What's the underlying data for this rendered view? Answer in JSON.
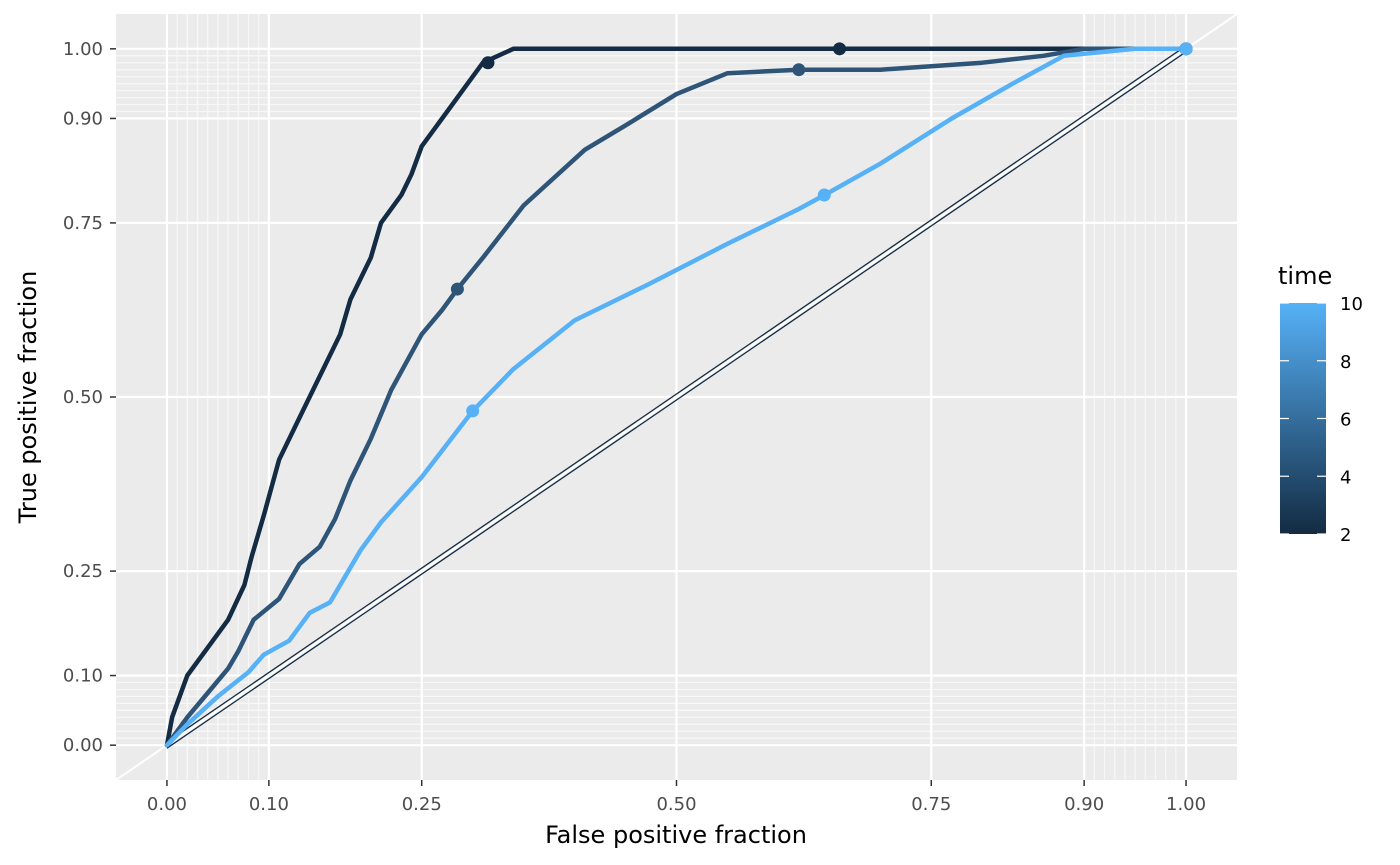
{
  "chart_data": {
    "type": "line",
    "xlabel": "False positive fraction",
    "ylabel": "True positive fraction",
    "xlim": [
      -0.05,
      1.05
    ],
    "ylim": [
      -0.05,
      1.05
    ],
    "x_ticks": [
      0.0,
      0.1,
      0.25,
      0.5,
      0.75,
      0.9,
      1.0
    ],
    "x_tick_labels": [
      "0.00",
      "0.10",
      "0.25",
      "0.50",
      "0.75",
      "0.90",
      "1.00"
    ],
    "y_ticks": [
      0.0,
      0.1,
      0.25,
      0.5,
      0.75,
      0.9,
      1.0
    ],
    "y_tick_labels": [
      "0.00",
      "0.10",
      "0.25",
      "0.50",
      "0.75",
      "0.90",
      "1.00"
    ],
    "background": "#EBEBEB",
    "grid": true,
    "legend": {
      "title": "time",
      "position": "right",
      "type": "colorbar",
      "min": 2,
      "max": 10,
      "breaks": [
        10,
        8,
        6,
        4,
        2
      ],
      "break_labels": [
        "10",
        "8",
        "6",
        "4",
        "2"
      ],
      "low_color": "#132B43",
      "high_color": "#56B1F7"
    },
    "series": [
      {
        "time": 2,
        "color": "#132B43",
        "points": [
          [
            0,
            0
          ],
          [
            0.005,
            0.04
          ],
          [
            0.02,
            0.1
          ],
          [
            0.04,
            0.14
          ],
          [
            0.06,
            0.18
          ],
          [
            0.076,
            0.23
          ],
          [
            0.083,
            0.27
          ],
          [
            0.095,
            0.33
          ],
          [
            0.11,
            0.41
          ],
          [
            0.13,
            0.47
          ],
          [
            0.15,
            0.53
          ],
          [
            0.17,
            0.59
          ],
          [
            0.18,
            0.64
          ],
          [
            0.2,
            0.7
          ],
          [
            0.21,
            0.75
          ],
          [
            0.23,
            0.79
          ],
          [
            0.24,
            0.82
          ],
          [
            0.25,
            0.86
          ],
          [
            0.27,
            0.9
          ],
          [
            0.29,
            0.94
          ],
          [
            0.31,
            0.98
          ],
          [
            0.34,
            1.0
          ],
          [
            0.66,
            1.0
          ],
          [
            0.9,
            1.0
          ],
          [
            1.0,
            1.0
          ]
        ],
        "markers": [
          [
            0.315,
            0.98
          ],
          [
            0.66,
            1.0
          ],
          [
            1.0,
            1.0
          ]
        ]
      },
      {
        "time": 5,
        "color": "#2E5478",
        "points": [
          [
            0,
            0
          ],
          [
            0.02,
            0.04
          ],
          [
            0.04,
            0.075
          ],
          [
            0.06,
            0.11
          ],
          [
            0.07,
            0.135
          ],
          [
            0.085,
            0.18
          ],
          [
            0.11,
            0.21
          ],
          [
            0.13,
            0.26
          ],
          [
            0.15,
            0.285
          ],
          [
            0.165,
            0.325
          ],
          [
            0.18,
            0.38
          ],
          [
            0.2,
            0.44
          ],
          [
            0.22,
            0.51
          ],
          [
            0.25,
            0.59
          ],
          [
            0.27,
            0.625
          ],
          [
            0.285,
            0.655
          ],
          [
            0.31,
            0.7
          ],
          [
            0.35,
            0.775
          ],
          [
            0.41,
            0.855
          ],
          [
            0.45,
            0.89
          ],
          [
            0.5,
            0.935
          ],
          [
            0.55,
            0.965
          ],
          [
            0.62,
            0.97
          ],
          [
            0.7,
            0.97
          ],
          [
            0.8,
            0.98
          ],
          [
            0.86,
            0.99
          ],
          [
            0.9,
            1.0
          ],
          [
            1.0,
            1.0
          ]
        ],
        "markers": [
          [
            0.285,
            0.655
          ],
          [
            0.62,
            0.97
          ],
          [
            1.0,
            1.0
          ]
        ]
      },
      {
        "time": 10,
        "color": "#56B1F7",
        "points": [
          [
            0,
            0
          ],
          [
            0.02,
            0.03
          ],
          [
            0.05,
            0.07
          ],
          [
            0.08,
            0.105
          ],
          [
            0.095,
            0.13
          ],
          [
            0.12,
            0.15
          ],
          [
            0.14,
            0.19
          ],
          [
            0.16,
            0.205
          ],
          [
            0.19,
            0.28
          ],
          [
            0.21,
            0.32
          ],
          [
            0.25,
            0.385
          ],
          [
            0.3,
            0.48
          ],
          [
            0.34,
            0.54
          ],
          [
            0.4,
            0.61
          ],
          [
            0.47,
            0.66
          ],
          [
            0.55,
            0.72
          ],
          [
            0.62,
            0.77
          ],
          [
            0.645,
            0.79
          ],
          [
            0.7,
            0.835
          ],
          [
            0.77,
            0.9
          ],
          [
            0.83,
            0.95
          ],
          [
            0.88,
            0.99
          ],
          [
            0.95,
            1.0
          ],
          [
            1.0,
            1.0
          ]
        ],
        "markers": [
          [
            0.3,
            0.48
          ],
          [
            0.645,
            0.79
          ],
          [
            1.0,
            1.0
          ]
        ]
      }
    ],
    "reference_line": {
      "points": [
        [
          0,
          0
        ],
        [
          1,
          1
        ]
      ],
      "color": "#132B43"
    }
  }
}
